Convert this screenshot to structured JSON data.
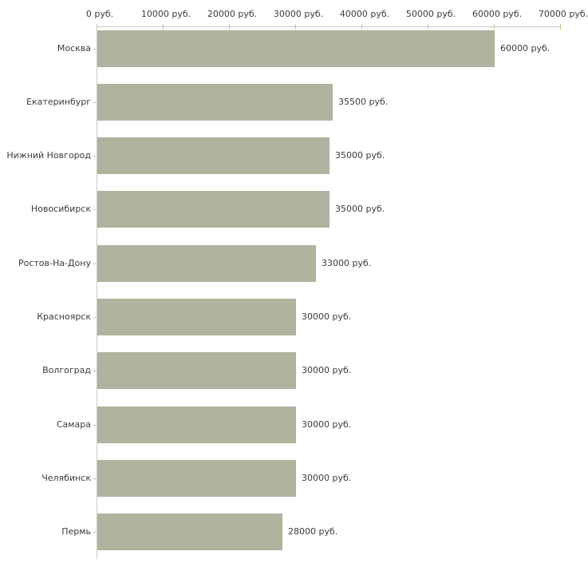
{
  "chart_data": {
    "type": "bar",
    "orientation": "horizontal",
    "title": "",
    "xlabel": "",
    "ylabel": "",
    "unit": "руб.",
    "categories": [
      "Москва",
      "Екатеринбург",
      "Нижний Новгород",
      "Новосибирск",
      "Ростов-На-Дону",
      "Красноярск",
      "Волгоград",
      "Самара",
      "Челябинск",
      "Пермь"
    ],
    "values": [
      60000,
      35500,
      35000,
      35000,
      33000,
      30000,
      30000,
      30000,
      30000,
      28000
    ],
    "value_labels": [
      "60000 руб.",
      "35500 руб.",
      "35000 руб.",
      "35000 руб.",
      "33000 руб.",
      "30000 руб.",
      "30000 руб.",
      "30000 руб.",
      "30000 руб.",
      "28000 руб."
    ],
    "x_ticks": [
      0,
      10000,
      20000,
      30000,
      40000,
      50000,
      60000,
      70000
    ],
    "x_tick_labels": [
      "0 руб.",
      "10000 руб.",
      "20000 руб.",
      "30000 руб.",
      "40000 руб.",
      "50000 руб.",
      "60000 руб.",
      "70000 руб."
    ],
    "xlim": [
      0,
      70000
    ],
    "grid": false,
    "legend": false,
    "colors": {
      "bar": "#aeb49d",
      "axis": "#c9c9c9",
      "tick": "#c6c69c",
      "text": "#3c3c3c",
      "background": "#ffffff"
    }
  }
}
